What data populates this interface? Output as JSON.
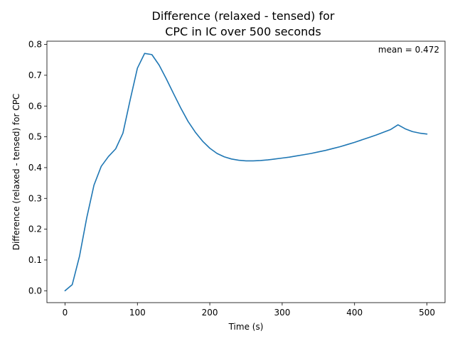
{
  "chart_data": {
    "type": "line",
    "title_line1": "Difference (relaxed - tensed) for",
    "title_line2": "CPC in IC over 500 seconds",
    "xlabel": "Time (s)",
    "ylabel": "Difference (relaxed - tensed) for CPC",
    "annotation": "mean = 0.472",
    "xlim": [
      -25,
      525
    ],
    "ylim": [
      -0.0386,
      0.8106
    ],
    "x_ticks": [
      0,
      100,
      200,
      300,
      400,
      500
    ],
    "x_tick_labels": [
      "0",
      "100",
      "200",
      "300",
      "400",
      "500"
    ],
    "y_ticks": [
      0.0,
      0.1,
      0.2,
      0.3,
      0.4,
      0.5,
      0.6,
      0.7,
      0.8
    ],
    "y_tick_labels": [
      "0.0",
      "0.1",
      "0.2",
      "0.3",
      "0.4",
      "0.5",
      "0.6",
      "0.7",
      "0.8"
    ],
    "grid": false,
    "series_color": "#1f77b4",
    "series": [
      {
        "x": [
          0,
          10,
          20,
          30,
          40,
          50,
          60,
          70,
          80,
          90,
          100,
          110,
          120,
          130,
          140,
          150,
          160,
          170,
          180,
          190,
          200,
          210,
          220,
          230,
          240,
          250,
          260,
          270,
          280,
          290,
          300,
          310,
          320,
          330,
          340,
          350,
          360,
          370,
          380,
          390,
          400,
          410,
          420,
          430,
          440,
          450,
          460,
          470,
          480,
          490,
          500
        ],
        "y": [
          0.0,
          0.02,
          0.112,
          0.237,
          0.343,
          0.404,
          0.436,
          0.461,
          0.512,
          0.62,
          0.723,
          0.771,
          0.767,
          0.733,
          0.688,
          0.64,
          0.593,
          0.55,
          0.515,
          0.486,
          0.463,
          0.446,
          0.435,
          0.428,
          0.424,
          0.422,
          0.422,
          0.423,
          0.425,
          0.428,
          0.431,
          0.434,
          0.438,
          0.442,
          0.446,
          0.451,
          0.456,
          0.462,
          0.468,
          0.475,
          0.482,
          0.49,
          0.498,
          0.506,
          0.515,
          0.524,
          0.539,
          0.526,
          0.517,
          0.512,
          0.509
        ]
      }
    ]
  }
}
